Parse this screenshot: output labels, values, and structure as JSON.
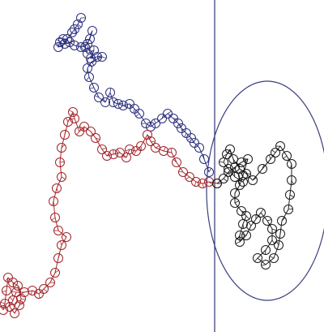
{
  "diagram": {
    "type": "random-walk-paths",
    "background": "#ffffff",
    "boundary_color": "#2e3470",
    "enclosure_color": "#3a3f80",
    "paths": [
      {
        "id": "blue",
        "color": "#2c2f7c",
        "node_count": 48
      },
      {
        "id": "red",
        "color": "#a2242a",
        "node_count": 42
      },
      {
        "id": "black",
        "color": "#1a1a1a",
        "node_count": 41
      }
    ]
  }
}
